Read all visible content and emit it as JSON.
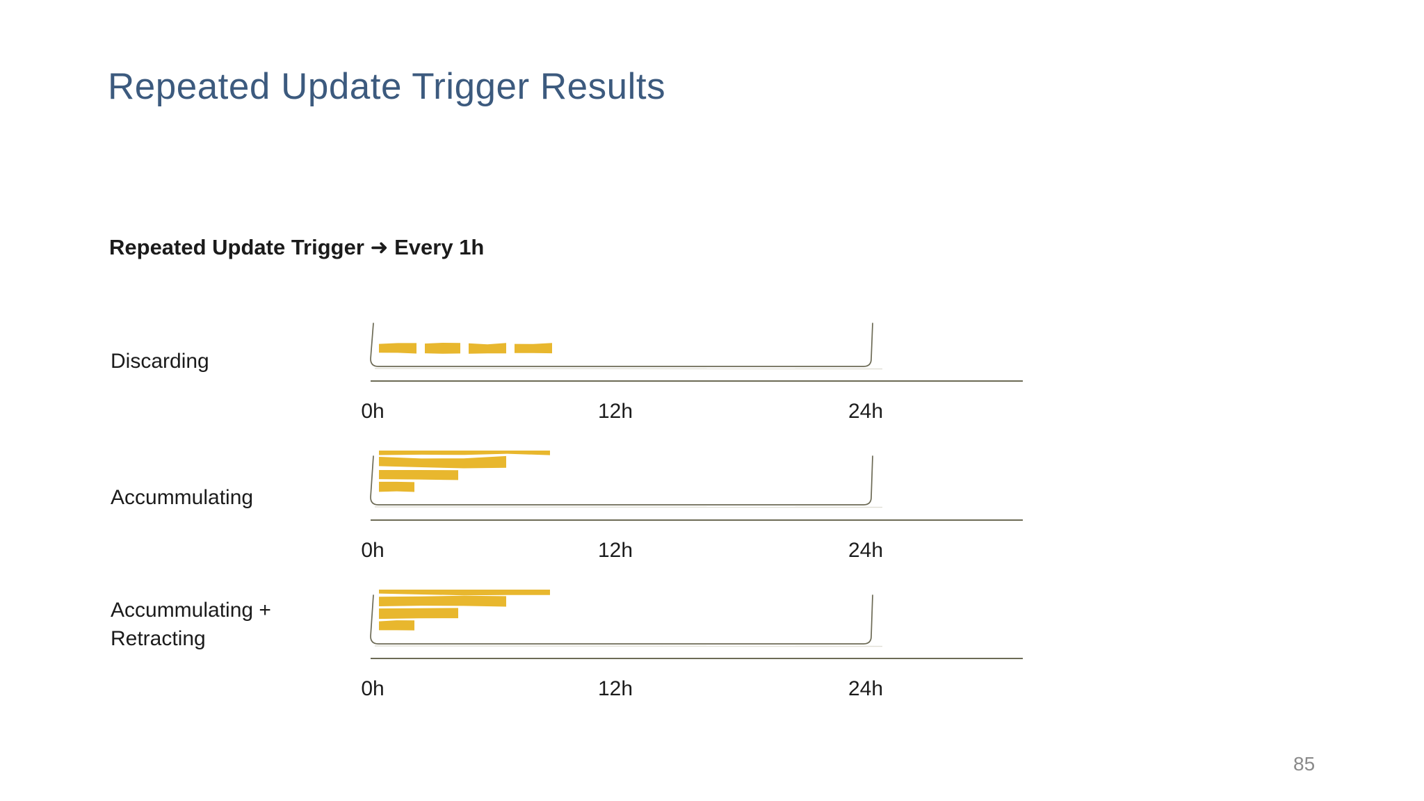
{
  "slide": {
    "title": "Repeated Update Trigger Results",
    "subtitle": "Repeated Update Trigger ➜ Every 1h",
    "page_number": "85",
    "colors": {
      "background": "#FFFFFF",
      "title_text": "#3C5A7E",
      "body_text": "#1B1B1B",
      "bar_fill": "#E8B72E",
      "axis_line": "#6C6A55",
      "page_number": "#8A8A8A"
    }
  },
  "chart_data": [
    {
      "type": "timeline",
      "label": "Discarding",
      "x_range_hours": [
        0,
        24
      ],
      "x_ticks": [
        {
          "hour": 0,
          "label": "0h"
        },
        {
          "hour": 12,
          "label": "12h"
        },
        {
          "hour": 24,
          "label": "24h"
        }
      ],
      "bars": [
        {
          "level": 0,
          "start_h": 0.4,
          "end_h": 2.2
        },
        {
          "level": 0,
          "start_h": 2.6,
          "end_h": 4.3
        },
        {
          "level": 0,
          "start_h": 4.7,
          "end_h": 6.5
        },
        {
          "level": 0,
          "start_h": 6.9,
          "end_h": 8.7
        }
      ]
    },
    {
      "type": "timeline",
      "label": "Accummulating",
      "x_range_hours": [
        0,
        24
      ],
      "x_ticks": [
        {
          "hour": 0,
          "label": "0h"
        },
        {
          "hour": 12,
          "label": "12h"
        },
        {
          "hour": 24,
          "label": "24h"
        }
      ],
      "bars": [
        {
          "level": 3,
          "start_h": 0.4,
          "end_h": 8.6
        },
        {
          "level": 2,
          "start_h": 0.4,
          "end_h": 6.5
        },
        {
          "level": 1,
          "start_h": 0.4,
          "end_h": 4.2
        },
        {
          "level": 0,
          "start_h": 0.4,
          "end_h": 2.1
        }
      ]
    },
    {
      "type": "timeline",
      "label": "Accummulating + Retracting",
      "x_range_hours": [
        0,
        24
      ],
      "x_ticks": [
        {
          "hour": 0,
          "label": "0h"
        },
        {
          "hour": 12,
          "label": "12h"
        },
        {
          "hour": 24,
          "label": "24h"
        }
      ],
      "bars": [
        {
          "level": 3,
          "start_h": 0.4,
          "end_h": 8.6
        },
        {
          "level": 2,
          "start_h": 0.4,
          "end_h": 6.5
        },
        {
          "level": 1,
          "start_h": 0.4,
          "end_h": 4.2
        },
        {
          "level": 0,
          "start_h": 0.4,
          "end_h": 2.1
        }
      ]
    }
  ]
}
